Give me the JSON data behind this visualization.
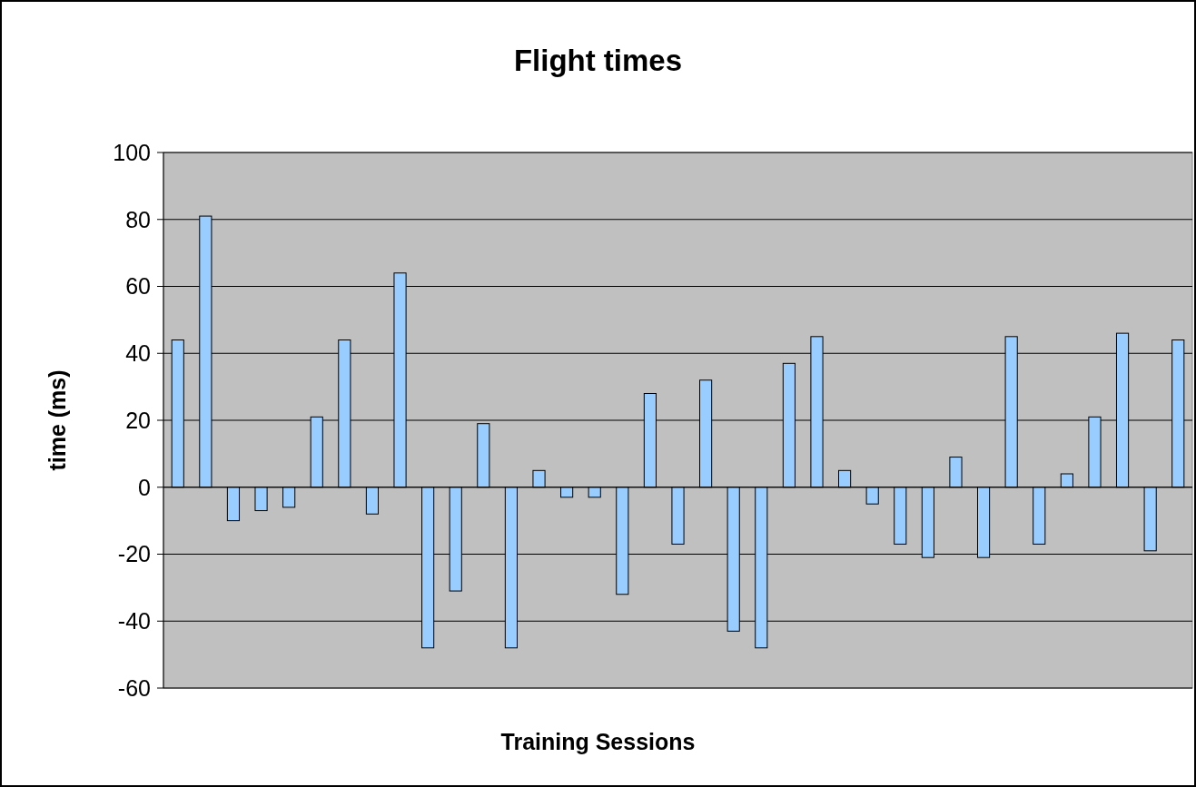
{
  "chart_data": {
    "type": "bar",
    "title": "Flight times",
    "xlabel": "Training Sessions",
    "ylabel": "time (ms)",
    "categories": [
      null,
      null,
      null,
      null,
      null,
      null,
      null,
      null,
      null,
      null,
      null,
      null,
      null,
      null,
      null,
      null,
      null,
      null,
      null,
      null,
      null,
      null,
      null,
      null,
      null,
      null,
      null,
      null,
      null,
      null,
      null,
      null,
      null,
      null,
      null,
      null,
      null
    ],
    "values": [
      44,
      81,
      -10,
      -7,
      -6,
      21,
      44,
      -8,
      64,
      -48,
      -31,
      19,
      -48,
      5,
      -3,
      -3,
      -32,
      28,
      -17,
      32,
      -43,
      -48,
      37,
      45,
      5,
      -5,
      -17,
      -21,
      9,
      -21,
      45,
      -17,
      4,
      21,
      46,
      -19,
      44
    ],
    "color": "#99ccff",
    "ylim": [
      -60,
      100
    ],
    "yticks": [
      -60,
      -40,
      -20,
      0,
      20,
      40,
      60,
      80,
      100
    ],
    "grid": "y"
  }
}
